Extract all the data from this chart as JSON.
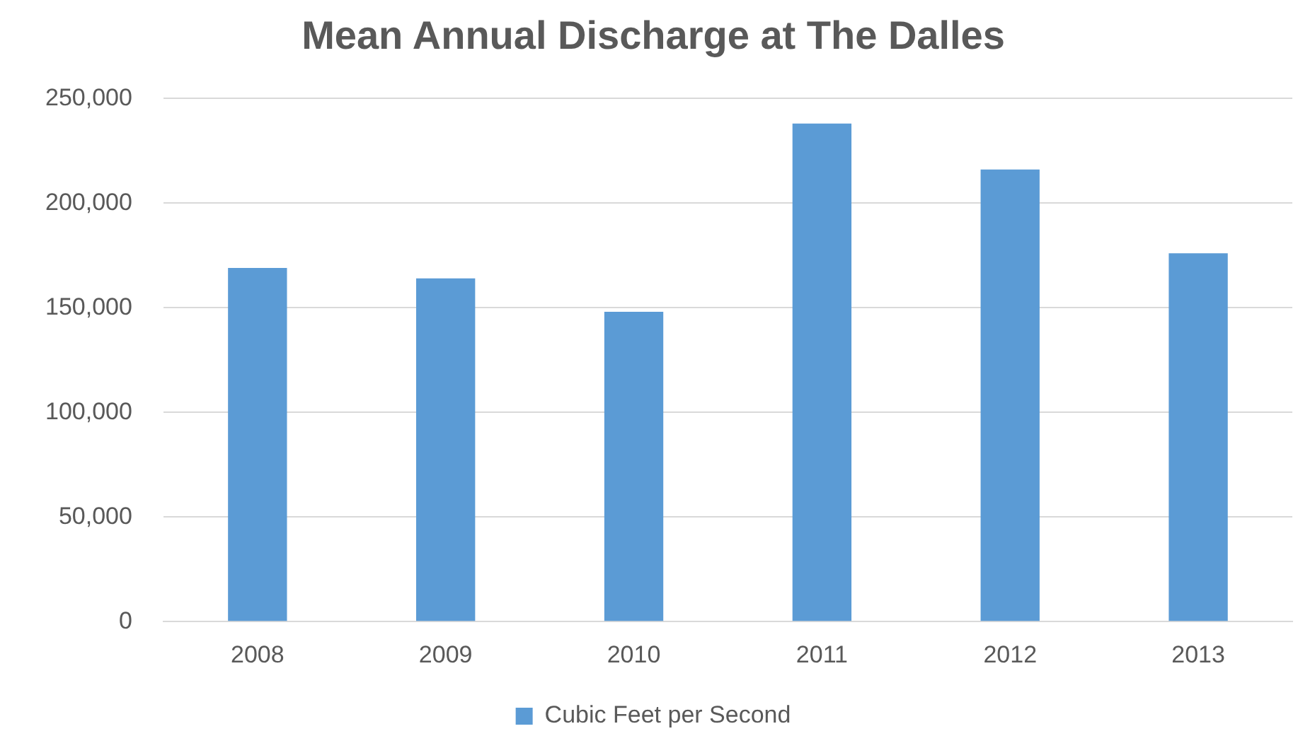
{
  "chart_data": {
    "type": "bar",
    "title": "Mean Annual Discharge at The Dalles",
    "categories": [
      "2008",
      "2009",
      "2010",
      "2011",
      "2012",
      "2013"
    ],
    "series": [
      {
        "name": "Cubic Feet per Second",
        "color": "#5b9bd5",
        "values": [
          169000,
          164000,
          148000,
          238000,
          216000,
          176000
        ]
      }
    ],
    "ylim": [
      0,
      250000
    ],
    "yticks": [
      {
        "value": 0,
        "label": "0"
      },
      {
        "value": 50000,
        "label": "50,000"
      },
      {
        "value": 100000,
        "label": "100,000"
      },
      {
        "value": 150000,
        "label": "150,000"
      },
      {
        "value": 200000,
        "label": "200,000"
      },
      {
        "value": 250000,
        "label": "250,000"
      }
    ],
    "grid": "y",
    "legend": "bottom"
  }
}
